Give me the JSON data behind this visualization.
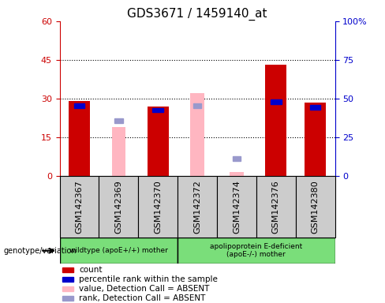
{
  "title": "GDS3671 / 1459140_at",
  "samples": [
    "GSM142367",
    "GSM142369",
    "GSM142370",
    "GSM142372",
    "GSM142374",
    "GSM142376",
    "GSM142380"
  ],
  "count_values": [
    29.0,
    null,
    27.0,
    null,
    null,
    43.0,
    28.5
  ],
  "rank_values_pct": [
    47.0,
    null,
    44.0,
    null,
    null,
    49.5,
    46.0
  ],
  "absent_value_values": [
    null,
    19.0,
    null,
    32.0,
    1.5,
    null,
    null
  ],
  "absent_rank_pct": [
    null,
    37.0,
    null,
    47.0,
    12.5,
    null,
    null
  ],
  "count_color": "#cc0000",
  "rank_color": "#0000cc",
  "absent_value_color": "#ffb6c1",
  "absent_rank_color": "#9999cc",
  "ylim_left": [
    0,
    60
  ],
  "ylim_right": [
    0,
    100
  ],
  "yticks_left": [
    0,
    15,
    30,
    45,
    60
  ],
  "yticks_right": [
    0,
    25,
    50,
    75,
    100
  ],
  "yticklabels_right": [
    "0",
    "25",
    "50",
    "75",
    "100%"
  ],
  "wildtype_label": "wildtype (apoE+/+) mother",
  "apoe_label": "apolipoprotein E-deficient\n(apoE-/-) mother",
  "genotype_label": "genotype/variation",
  "legend_items": [
    {
      "label": "count",
      "color": "#cc0000"
    },
    {
      "label": "percentile rank within the sample",
      "color": "#0000cc"
    },
    {
      "label": "value, Detection Call = ABSENT",
      "color": "#ffb6c1"
    },
    {
      "label": "rank, Detection Call = ABSENT",
      "color": "#9999cc"
    }
  ],
  "bar_width": 0.55,
  "absent_bar_width": 0.35,
  "group_bg_color": "#cccccc",
  "green_bg": "#7ade7a",
  "title_fontsize": 11,
  "tick_fontsize": 8,
  "label_fontsize": 8,
  "wildtype_n": 3,
  "apoe_n": 4
}
